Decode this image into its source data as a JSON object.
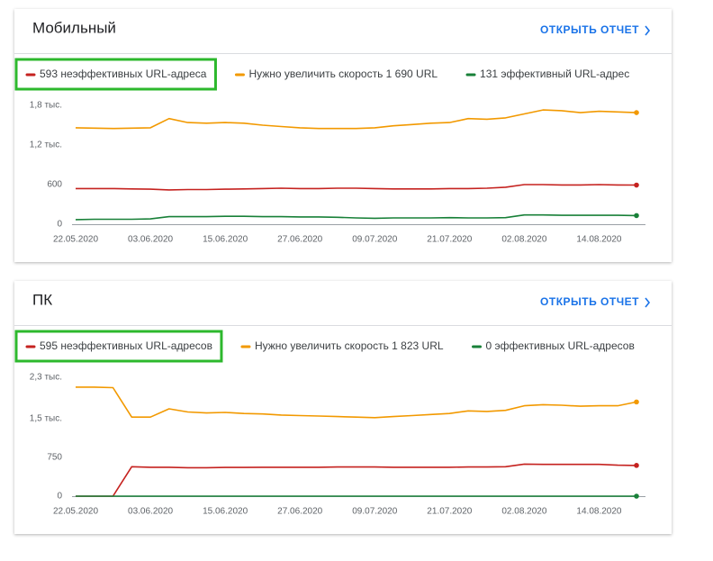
{
  "chart_data": [
    {
      "type": "line",
      "title": "Мобильный",
      "link": "ОТКРЫТЬ ОТЧЕТ",
      "x": [
        "22.05.2020",
        "25.05.2020",
        "28.05.2020",
        "31.05.2020",
        "03.06.2020",
        "06.06.2020",
        "09.06.2020",
        "12.06.2020",
        "15.06.2020",
        "18.06.2020",
        "21.06.2020",
        "24.06.2020",
        "27.06.2020",
        "30.06.2020",
        "03.07.2020",
        "06.07.2020",
        "09.07.2020",
        "12.07.2020",
        "15.07.2020",
        "18.07.2020",
        "21.07.2020",
        "24.07.2020",
        "27.07.2020",
        "30.07.2020",
        "02.08.2020",
        "05.08.2020",
        "08.08.2020",
        "11.08.2020",
        "14.08.2020",
        "17.08.2020",
        "20.08.2020"
      ],
      "xticks": [
        "22.05.2020",
        "03.06.2020",
        "15.06.2020",
        "27.06.2020",
        "09.07.2020",
        "21.07.2020",
        "02.08.2020",
        "14.08.2020"
      ],
      "ylim": [
        0,
        1800
      ],
      "yticks": [
        0,
        600,
        {
          "value": 1200,
          "label": "1,2 тыс."
        },
        {
          "value": 1800,
          "label": "1,8 тыс."
        }
      ],
      "grid": false,
      "series": [
        {
          "name": "593 неэффективных URL-адреса",
          "color": "#c5221f",
          "values": [
            540,
            540,
            540,
            535,
            530,
            520,
            525,
            525,
            530,
            535,
            540,
            545,
            540,
            540,
            545,
            545,
            540,
            535,
            535,
            535,
            540,
            540,
            545,
            560,
            600,
            600,
            595,
            595,
            600,
            595,
            593
          ]
        },
        {
          "name": "Нужно увеличить скорость 1 690 URL",
          "color": "#f29900",
          "values": [
            1460,
            1455,
            1450,
            1455,
            1460,
            1600,
            1540,
            1530,
            1540,
            1530,
            1500,
            1480,
            1460,
            1450,
            1450,
            1450,
            1460,
            1490,
            1510,
            1530,
            1540,
            1600,
            1590,
            1610,
            1670,
            1730,
            1720,
            1690,
            1710,
            1700,
            1690
          ]
        },
        {
          "name": "131 эффективный URL-адрес",
          "color": "#188038",
          "values": [
            70,
            75,
            75,
            75,
            80,
            115,
            115,
            115,
            120,
            120,
            115,
            115,
            110,
            110,
            105,
            95,
            90,
            95,
            95,
            95,
            100,
            95,
            95,
            100,
            140,
            140,
            135,
            135,
            135,
            135,
            131
          ]
        }
      ]
    },
    {
      "type": "line",
      "title": "ПК",
      "link": "ОТКРЫТЬ ОТЧЕТ",
      "x": [
        "22.05.2020",
        "25.05.2020",
        "28.05.2020",
        "31.05.2020",
        "03.06.2020",
        "06.06.2020",
        "09.06.2020",
        "12.06.2020",
        "15.06.2020",
        "18.06.2020",
        "21.06.2020",
        "24.06.2020",
        "27.06.2020",
        "30.06.2020",
        "03.07.2020",
        "06.07.2020",
        "09.07.2020",
        "12.07.2020",
        "15.07.2020",
        "18.07.2020",
        "21.07.2020",
        "24.07.2020",
        "27.07.2020",
        "30.07.2020",
        "02.08.2020",
        "05.08.2020",
        "08.08.2020",
        "11.08.2020",
        "14.08.2020",
        "17.08.2020",
        "20.08.2020"
      ],
      "xticks": [
        "22.05.2020",
        "03.06.2020",
        "15.06.2020",
        "27.06.2020",
        "09.07.2020",
        "21.07.2020",
        "02.08.2020",
        "14.08.2020"
      ],
      "ylim": [
        0,
        2300
      ],
      "yticks": [
        0,
        750,
        {
          "value": 1500,
          "label": "1,5 тыс."
        },
        {
          "value": 2300,
          "label": "2,3 тыс."
        }
      ],
      "grid": false,
      "series": [
        {
          "name": "595 неэффективных URL-адресов",
          "color": "#c5221f",
          "values": [
            0,
            0,
            0,
            570,
            560,
            560,
            550,
            550,
            555,
            555,
            560,
            560,
            560,
            560,
            565,
            565,
            565,
            560,
            560,
            560,
            560,
            565,
            565,
            570,
            620,
            615,
            615,
            615,
            615,
            600,
            595
          ]
        },
        {
          "name": "Нужно увеличить скорость 1 823 URL",
          "color": "#f29900",
          "values": [
            2110,
            2110,
            2100,
            1530,
            1530,
            1690,
            1630,
            1610,
            1620,
            1600,
            1590,
            1570,
            1560,
            1550,
            1540,
            1530,
            1520,
            1540,
            1560,
            1580,
            1600,
            1650,
            1640,
            1660,
            1750,
            1770,
            1760,
            1740,
            1750,
            1750,
            1823
          ]
        },
        {
          "name": "0 эффективных URL-адресов",
          "color": "#188038",
          "values": [
            0,
            0,
            0,
            0,
            0,
            0,
            0,
            0,
            0,
            0,
            0,
            0,
            0,
            0,
            0,
            0,
            0,
            0,
            0,
            0,
            0,
            0,
            0,
            0,
            0,
            0,
            0,
            0,
            0,
            0,
            0
          ]
        }
      ]
    }
  ]
}
